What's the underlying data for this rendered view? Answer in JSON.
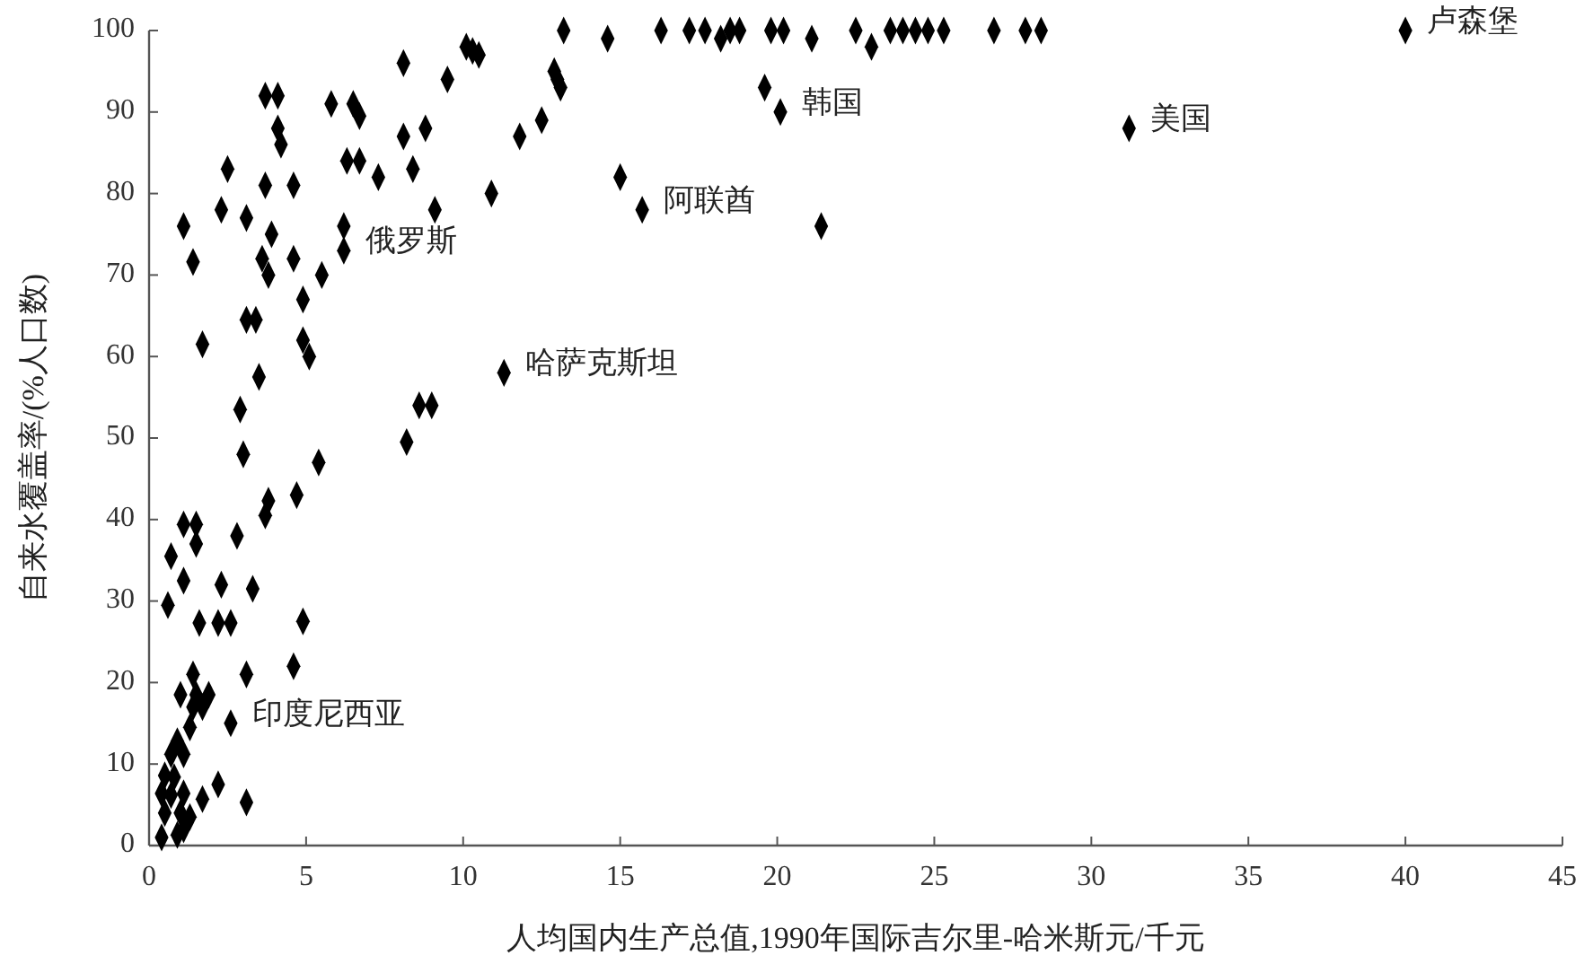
{
  "chart_data": {
    "type": "scatter",
    "xlabel": "人均国内生产总值,1990年国际吉尔里-哈米斯元/千元",
    "ylabel": "自来水覆盖率/(%人口数)",
    "xlim": [
      0,
      45
    ],
    "ylim": [
      0,
      100
    ],
    "xticks": [
      0,
      5,
      10,
      15,
      20,
      25,
      30,
      35,
      40,
      45
    ],
    "yticks": [
      0,
      10,
      20,
      30,
      40,
      50,
      60,
      70,
      80,
      90,
      100
    ],
    "grid": false,
    "marker": "diamond",
    "series": [
      {
        "color": "#000000",
        "x": [
          13.2,
          14.6,
          16.3,
          17.2,
          17.7,
          18.2,
          18.5,
          18.8,
          19.8,
          20.2,
          21.1,
          22.5,
          23.0,
          23.6,
          24.0,
          24.4,
          24.8,
          25.3,
          26.9,
          27.9,
          28.4,
          40,
          19.6,
          20.1,
          31.2,
          15.0,
          15.7,
          21.4,
          10.1,
          10.3,
          10.5,
          11.8,
          12.5,
          12.9,
          13.0,
          13.1,
          9.5,
          8.1,
          8.1,
          8.8,
          9.1,
          10.9,
          11.3,
          8.6,
          9.0,
          8.2,
          3.7,
          4.1,
          5.8,
          6.5,
          6.7,
          4.1,
          4.2,
          6.3,
          6.7,
          7.3,
          8.4,
          2.5,
          3.7,
          4.6,
          2.3,
          3.1,
          1.1,
          3.9,
          6.2,
          6.2,
          1.4,
          3.6,
          3.8,
          4.6,
          5.5,
          4.9,
          3.1,
          3.4,
          1.7,
          4.9,
          5.1,
          3.5,
          2.9,
          3.0,
          5.4,
          3.8,
          3.7,
          4.7,
          1.1,
          1.5,
          1.5,
          2.8,
          0.7,
          1.1,
          2.3,
          3.3,
          0.6,
          1.6,
          2.2,
          2.6,
          4.9,
          1.4,
          3.1,
          4.6,
          1.0,
          1.5,
          1.9,
          1.4,
          1.7,
          2.6,
          1.3,
          0.9,
          1.1,
          0.7,
          0.5,
          0.8,
          2.2,
          1.7,
          3.1,
          0.4,
          0.7,
          1.1,
          0.5,
          1.0,
          1.3,
          0.4,
          0.9,
          1.1
        ],
        "values": [
          100,
          99,
          100,
          100,
          100,
          99,
          100,
          100,
          100,
          100,
          99,
          100,
          98,
          100,
          100,
          100,
          100,
          100,
          100,
          100,
          100,
          100,
          93,
          90,
          88,
          82,
          78,
          76,
          98,
          97.5,
          97,
          87,
          89,
          95,
          94,
          93,
          94,
          96,
          87,
          88,
          78,
          80,
          58,
          54,
          54,
          49.5,
          92,
          92,
          91,
          91,
          89.5,
          88,
          86,
          84,
          84,
          82,
          83,
          83,
          81,
          81,
          78,
          77,
          76,
          75,
          76,
          73,
          71.6,
          72,
          70,
          72,
          70,
          67,
          64.5,
          64.5,
          61.5,
          62,
          60,
          57.5,
          53.5,
          48,
          47,
          42.3,
          40.5,
          43,
          39.4,
          39.4,
          37,
          38,
          35.5,
          32.5,
          32,
          31.5,
          29.5,
          27.3,
          27.3,
          27.3,
          27.5,
          21,
          21,
          22,
          18.5,
          18.5,
          18.5,
          17,
          17,
          15,
          14.5,
          12.8,
          11.2,
          11.2,
          8.6,
          8.4,
          7.5,
          5.7,
          5.3,
          6.4,
          6.2,
          6.4,
          4,
          4,
          3.5,
          1,
          1.3,
          2
        ]
      }
    ],
    "annotations": [
      {
        "text": "卢森堡",
        "x": 40,
        "y": 100
      },
      {
        "text": "美国",
        "x": 31.2,
        "y": 88
      },
      {
        "text": "韩国",
        "x": 20.1,
        "y": 90
      },
      {
        "text": "阿联酋",
        "x": 15.7,
        "y": 78
      },
      {
        "text": "俄罗斯",
        "x": 6.2,
        "y": 73
      },
      {
        "text": "哈萨克斯坦",
        "x": 11.3,
        "y": 58
      },
      {
        "text": "印度尼西亚",
        "x": 2.6,
        "y": 15
      }
    ]
  }
}
